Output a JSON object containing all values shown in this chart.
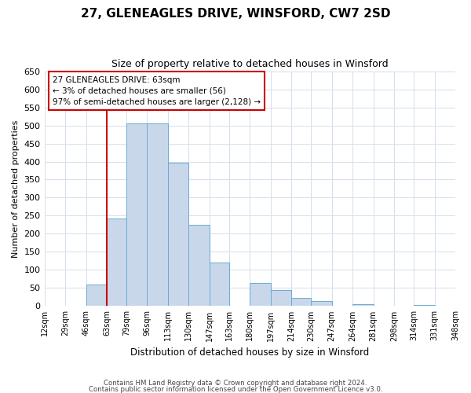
{
  "title": "27, GLENEAGLES DRIVE, WINSFORD, CW7 2SD",
  "subtitle": "Size of property relative to detached houses in Winsford",
  "xlabel": "Distribution of detached houses by size in Winsford",
  "ylabel": "Number of detached properties",
  "bin_edges": [
    12,
    29,
    46,
    63,
    79,
    96,
    113,
    130,
    147,
    163,
    180,
    197,
    214,
    230,
    247,
    264,
    281,
    298,
    314,
    331,
    348
  ],
  "bin_labels": [
    "12sqm",
    "29sqm",
    "46sqm",
    "63sqm",
    "79sqm",
    "96sqm",
    "113sqm",
    "130sqm",
    "147sqm",
    "163sqm",
    "180sqm",
    "197sqm",
    "214sqm",
    "230sqm",
    "247sqm",
    "264sqm",
    "281sqm",
    "298sqm",
    "314sqm",
    "331sqm",
    "348sqm"
  ],
  "counts": [
    0,
    0,
    60,
    243,
    505,
    505,
    397,
    225,
    120,
    0,
    63,
    45,
    23,
    13,
    0,
    5,
    0,
    0,
    3,
    0
  ],
  "bar_color": "#c8d8ea",
  "bar_edge_color": "#6aaad4",
  "property_line_x": 63,
  "annotation_line1": "27 GLENEAGLES DRIVE: 63sqm",
  "annotation_line2": "← 3% of detached houses are smaller (56)",
  "annotation_line3": "97% of semi-detached houses are larger (2,128) →",
  "ylim": [
    0,
    650
  ],
  "yticks": [
    0,
    50,
    100,
    150,
    200,
    250,
    300,
    350,
    400,
    450,
    500,
    550,
    600,
    650
  ],
  "footer1": "Contains HM Land Registry data © Crown copyright and database right 2024.",
  "footer2": "Contains public sector information licensed under the Open Government Licence v3.0.",
  "grid_color": "#d4e0ec",
  "ann_box_color": "#cc0000"
}
